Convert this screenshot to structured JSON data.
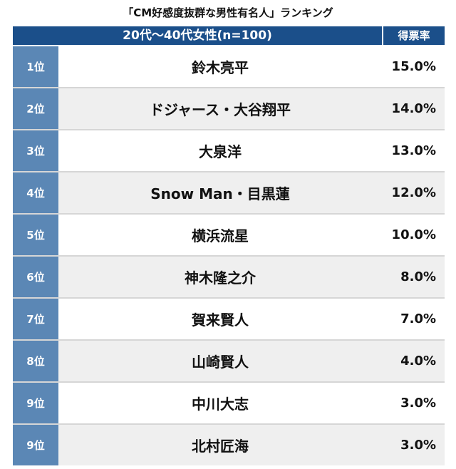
{
  "chart_data": {
    "type": "table",
    "title": "「CM好感度抜群な男性有名人」ランキング",
    "group_header": "20代〜40代女性(n=100)",
    "value_header": "得票率",
    "rows": [
      {
        "rank": "1位",
        "name": "鈴木亮平",
        "value": 15.0,
        "label": "15.0%"
      },
      {
        "rank": "2位",
        "name": "ドジャース・大谷翔平",
        "value": 14.0,
        "label": "14.0%"
      },
      {
        "rank": "3位",
        "name": "大泉洋",
        "value": 13.0,
        "label": "13.0%"
      },
      {
        "rank": "4位",
        "name": "Snow Man・目黒蓮",
        "value": 12.0,
        "label": "12.0%"
      },
      {
        "rank": "5位",
        "name": "横浜流星",
        "value": 10.0,
        "label": "10.0%"
      },
      {
        "rank": "6位",
        "name": "神木隆之介",
        "value": 8.0,
        "label": "8.0%"
      },
      {
        "rank": "7位",
        "name": "賀来賢人",
        "value": 7.0,
        "label": "7.0%"
      },
      {
        "rank": "8位",
        "name": "山崎賢人",
        "value": 4.0,
        "label": "4.0%"
      },
      {
        "rank": "9位",
        "name": "中川大志",
        "value": 3.0,
        "label": "3.0%"
      },
      {
        "rank": "9位",
        "name": "北村匠海",
        "value": 3.0,
        "label": "3.0%"
      }
    ]
  },
  "colors": {
    "header_bg": "#1b4f8a",
    "rank_bg": "#5b87b5",
    "row_alt_bg": "#efefef"
  }
}
